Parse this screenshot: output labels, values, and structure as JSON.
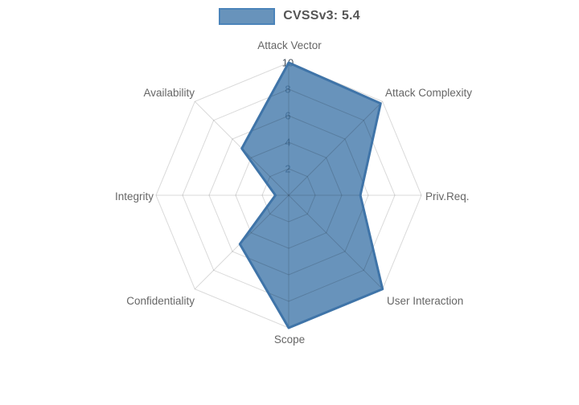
{
  "legend": {
    "label": "CVSSv3: 5.4",
    "swatch_fill": "rgba(66,120,170,0.8)",
    "swatch_border": "#4b84ba"
  },
  "chart_data": {
    "type": "radar",
    "series": [
      {
        "name": "CVSSv3: 5.4",
        "values": [
          10,
          9.8,
          5.4,
          10,
          10,
          5.2,
          1.0,
          5.0
        ]
      }
    ],
    "categories": [
      "Attack Vector",
      "Attack Complexity",
      "Priv.Req.",
      "User Interaction",
      "Scope",
      "Confidentiality",
      "Integrity",
      "Availability"
    ],
    "radial_ticks": [
      2,
      4,
      6,
      8,
      10
    ],
    "rlim": [
      0,
      10
    ],
    "grid": true,
    "grid_shape": "polygon",
    "legend_position": "top",
    "colors": {
      "fill": "rgba(66,120,170,0.8)",
      "stroke": "#3f74a8",
      "grid_line": "rgba(0,0,0,0.15)",
      "tick_backdrop": "rgba(255,255,255,0.85)",
      "tick_text": "#4a5560",
      "axis_label": "#666666"
    }
  }
}
